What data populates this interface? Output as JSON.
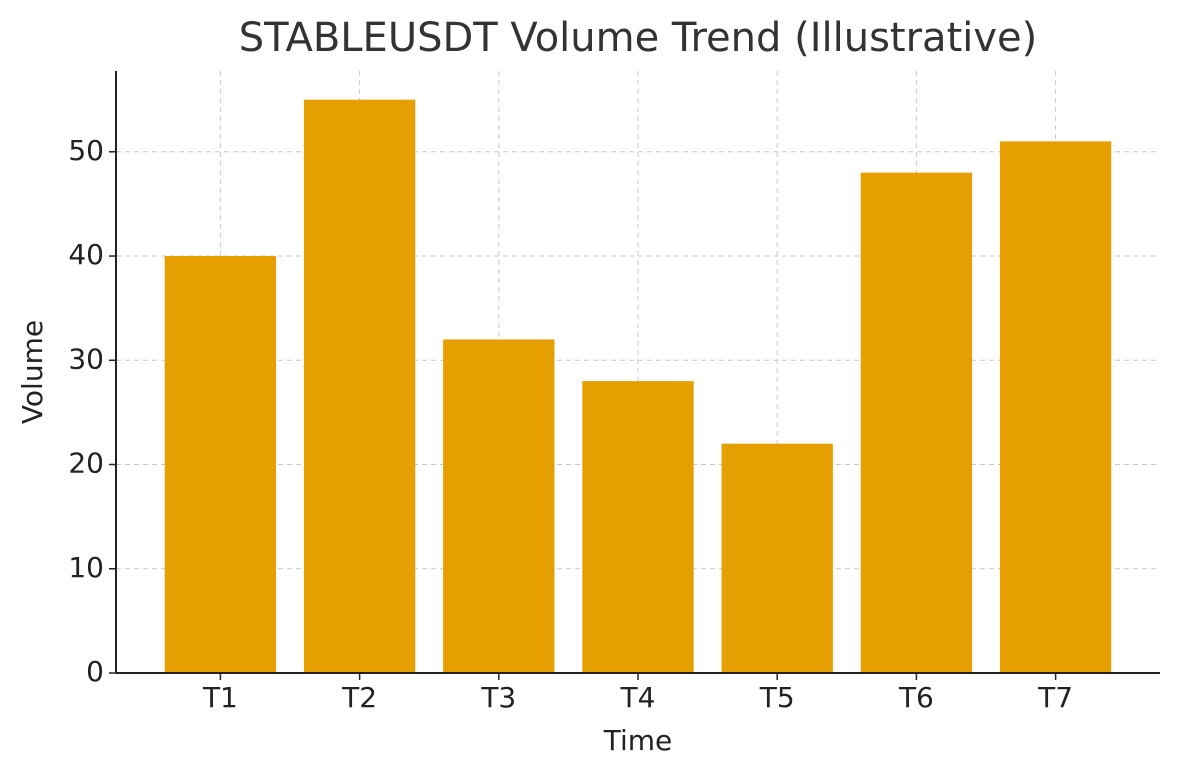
{
  "chart_data": {
    "type": "bar",
    "title": "STABLEUSDT Volume Trend (Illustrative)",
    "x_label": "Time",
    "y_label": "Volume",
    "categories": [
      "T1",
      "T2",
      "T3",
      "T4",
      "T5",
      "T6",
      "T7"
    ],
    "values": [
      40,
      55,
      32,
      28,
      22,
      48,
      51
    ],
    "color": "#e69f00",
    "ylim": [
      0,
      57.75
    ],
    "yticks": [
      0,
      10,
      20,
      30,
      40,
      50
    ],
    "grid": true
  }
}
